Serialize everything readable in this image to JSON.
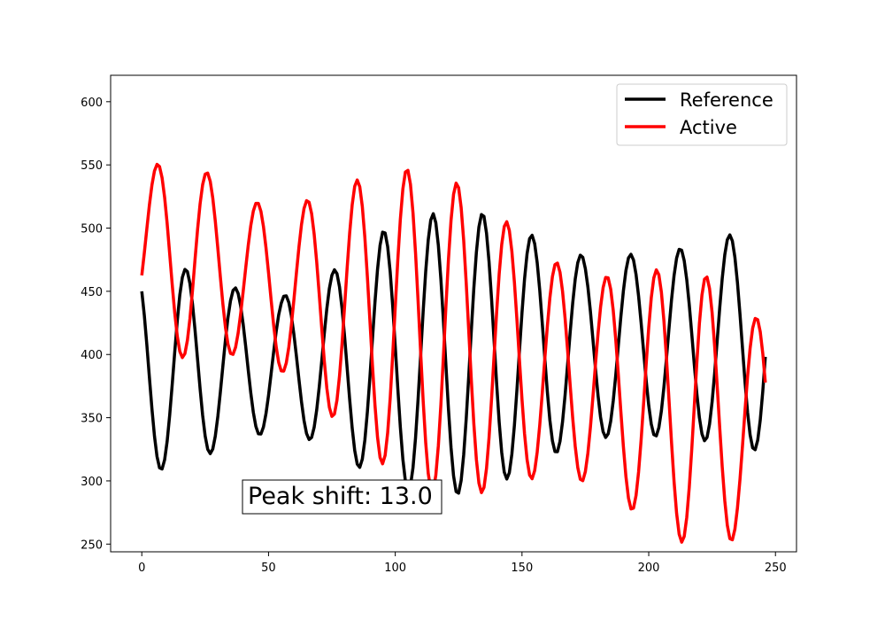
{
  "chart_data": {
    "type": "line",
    "title": "",
    "xlabel": "",
    "ylabel": "",
    "xlim": [
      -12.3,
      258.3
    ],
    "ylim": [
      243.9,
      620.9
    ],
    "xticks": [
      0,
      50,
      100,
      150,
      200,
      250
    ],
    "yticks": [
      250,
      300,
      350,
      400,
      450,
      500,
      550,
      600
    ],
    "legend": {
      "placement": "top-right"
    },
    "annotation": {
      "text": "Peak shift: 13.0",
      "x": 40,
      "y": 288
    },
    "series": [
      {
        "name": "Reference",
        "color": "#000000",
        "line_width": 3.5,
        "n_points": 247,
        "waveform": {
          "baseline": 388,
          "baseline_slope": 0.1,
          "period": 19.5,
          "phase": 12.5,
          "amp_anchor_x": [
            0,
            15,
            35,
            55,
            75,
            95,
            115,
            135,
            155,
            175,
            195,
            215,
            235,
            246
          ],
          "amp_anchor_v": [
            80,
            80,
            62,
            52,
            70,
            100,
            112,
            110,
            90,
            72,
            72,
            75,
            85,
            90
          ]
        }
      },
      {
        "name": "Active",
        "color": "#ff0000",
        "line_width": 3.5,
        "n_points": 247,
        "waveform": {
          "baseline": 485,
          "baseline_slope": -0.59,
          "period": 19.7,
          "phase": 1.2,
          "amp_anchor_x": [
            0,
            10,
            20,
            40,
            60,
            80,
            100,
            120,
            140,
            160,
            180,
            200,
            220,
            235,
            246
          ],
          "amp_anchor_v": [
            60,
            75,
            80,
            60,
            68,
            97,
            122,
            128,
            110,
            85,
            82,
            100,
            112,
            92,
            85
          ]
        }
      }
    ]
  }
}
